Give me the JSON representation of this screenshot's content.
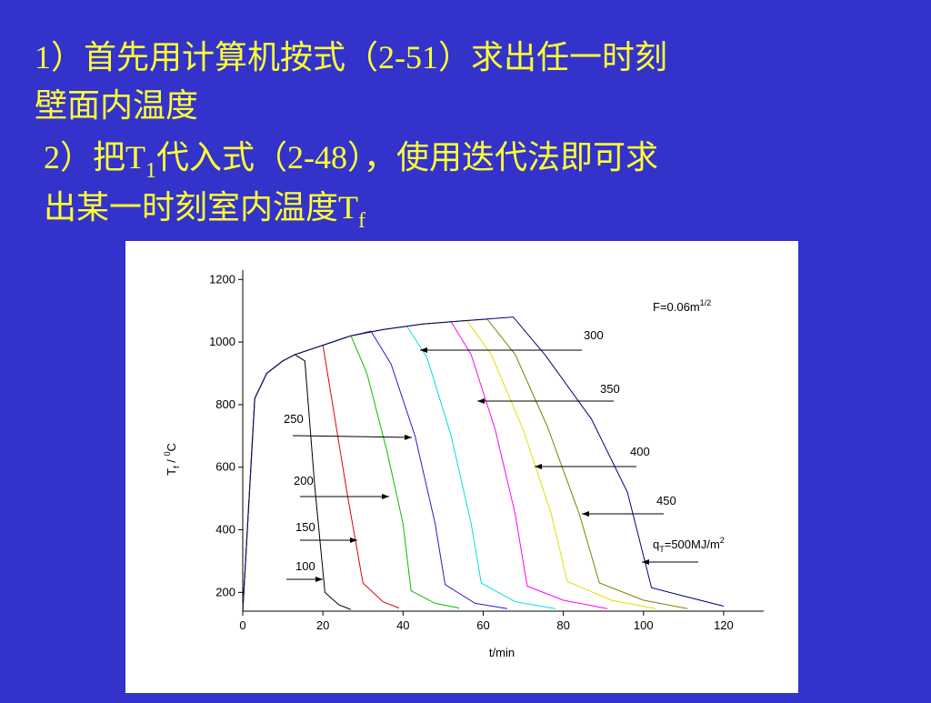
{
  "slide": {
    "point1": [
      "1）首先用计算机按式（2-51）求出任一时刻",
      "壁面内温度"
    ],
    "point2": [
      {
        "a": "2）把T",
        "sub": "1",
        "b": "代入式（2-48），使用迭代法即可求"
      },
      {
        "a": "出某一时刻室内温度T",
        "sub": "f"
      }
    ]
  },
  "chart_data": {
    "type": "line",
    "xlabel": "t/min",
    "ylabel": {
      "text": "T",
      "sub": "f",
      "mid": " / ",
      "sup": "0",
      "tail": "C"
    },
    "note": {
      "text": "F=0.06m",
      "sup": "1/2"
    },
    "xlim": [
      0,
      130
    ],
    "xticks": [
      0,
      20,
      40,
      60,
      80,
      100,
      120
    ],
    "ylim": [
      140,
      1230
    ],
    "yticks": [
      200,
      400,
      600,
      800,
      1000,
      1200
    ],
    "annotations": [
      {
        "text": "100"
      },
      {
        "text": "150"
      },
      {
        "text": "200"
      },
      {
        "text": "250"
      },
      {
        "text": "300"
      },
      {
        "text": "350"
      },
      {
        "text": "400"
      },
      {
        "text": "450"
      },
      {
        "text": "q",
        "sub": "T",
        "tail": "=500MJ/m",
        "sup": "2"
      }
    ],
    "series": [
      {
        "color": "#000000",
        "x": [
          0,
          3,
          6,
          10,
          13,
          15.5,
          18,
          20.5,
          24,
          27
        ],
        "values": [
          140,
          820,
          900,
          940,
          960,
          940,
          535,
          200,
          160,
          145
        ]
      },
      {
        "color": "#e00000",
        "x": [
          0,
          3,
          6,
          10,
          13,
          20,
          23,
          26,
          30,
          35,
          39
        ],
        "values": [
          140,
          820,
          900,
          940,
          960,
          990,
          755,
          520,
          230,
          170,
          150
        ]
      },
      {
        "color": "#00c000",
        "x": [
          0,
          3,
          6,
          10,
          13,
          20,
          27,
          31,
          36,
          40,
          42,
          48,
          54
        ],
        "values": [
          140,
          820,
          900,
          940,
          960,
          990,
          1020,
          900,
          650,
          420,
          205,
          165,
          150
        ]
      },
      {
        "color": "#2020d0",
        "x": [
          0,
          3,
          6,
          10,
          13,
          20,
          27,
          32,
          37,
          43,
          48,
          50.5,
          58,
          66
        ],
        "values": [
          140,
          820,
          900,
          940,
          960,
          990,
          1020,
          1035,
          930,
          700,
          420,
          225,
          165,
          148
        ]
      },
      {
        "color": "#00e0e0",
        "x": [
          0,
          3,
          6,
          10,
          13,
          20,
          27,
          35,
          41,
          46,
          52,
          57,
          59.5,
          68,
          78
        ],
        "values": [
          140,
          820,
          900,
          940,
          960,
          990,
          1020,
          1040,
          1050,
          950,
          700,
          420,
          230,
          170,
          148
        ]
      },
      {
        "color": "#ff00ff",
        "x": [
          0,
          3,
          6,
          10,
          13,
          20,
          27,
          35,
          45,
          52,
          57,
          63,
          68,
          71,
          80,
          91
        ],
        "values": [
          140,
          820,
          900,
          940,
          960,
          990,
          1020,
          1040,
          1058,
          1065,
          960,
          720,
          450,
          220,
          175,
          148
        ]
      },
      {
        "color": "#e0e000",
        "x": [
          0,
          3,
          6,
          10,
          13,
          20,
          27,
          35,
          45,
          56,
          62,
          70,
          77,
          81,
          92,
          103
        ],
        "values": [
          140,
          820,
          900,
          940,
          960,
          990,
          1020,
          1040,
          1058,
          1068,
          960,
          720,
          450,
          235,
          175,
          148
        ]
      },
      {
        "color": "#808000",
        "x": [
          0,
          3,
          6,
          10,
          13,
          20,
          27,
          35,
          45,
          55,
          61,
          68,
          76,
          84,
          89,
          100,
          111
        ],
        "values": [
          140,
          820,
          900,
          940,
          960,
          990,
          1020,
          1040,
          1058,
          1068,
          1073,
          960,
          730,
          450,
          230,
          175,
          148
        ]
      },
      {
        "color": "#000080",
        "x": [
          0,
          3,
          6,
          10,
          13,
          20,
          27,
          35,
          45,
          55,
          67.5,
          75.5,
          87,
          96,
          102,
          111,
          120
        ],
        "values": [
          140,
          820,
          900,
          940,
          960,
          990,
          1020,
          1040,
          1058,
          1068,
          1080,
          958,
          754,
          520,
          215,
          185,
          156
        ]
      }
    ]
  }
}
